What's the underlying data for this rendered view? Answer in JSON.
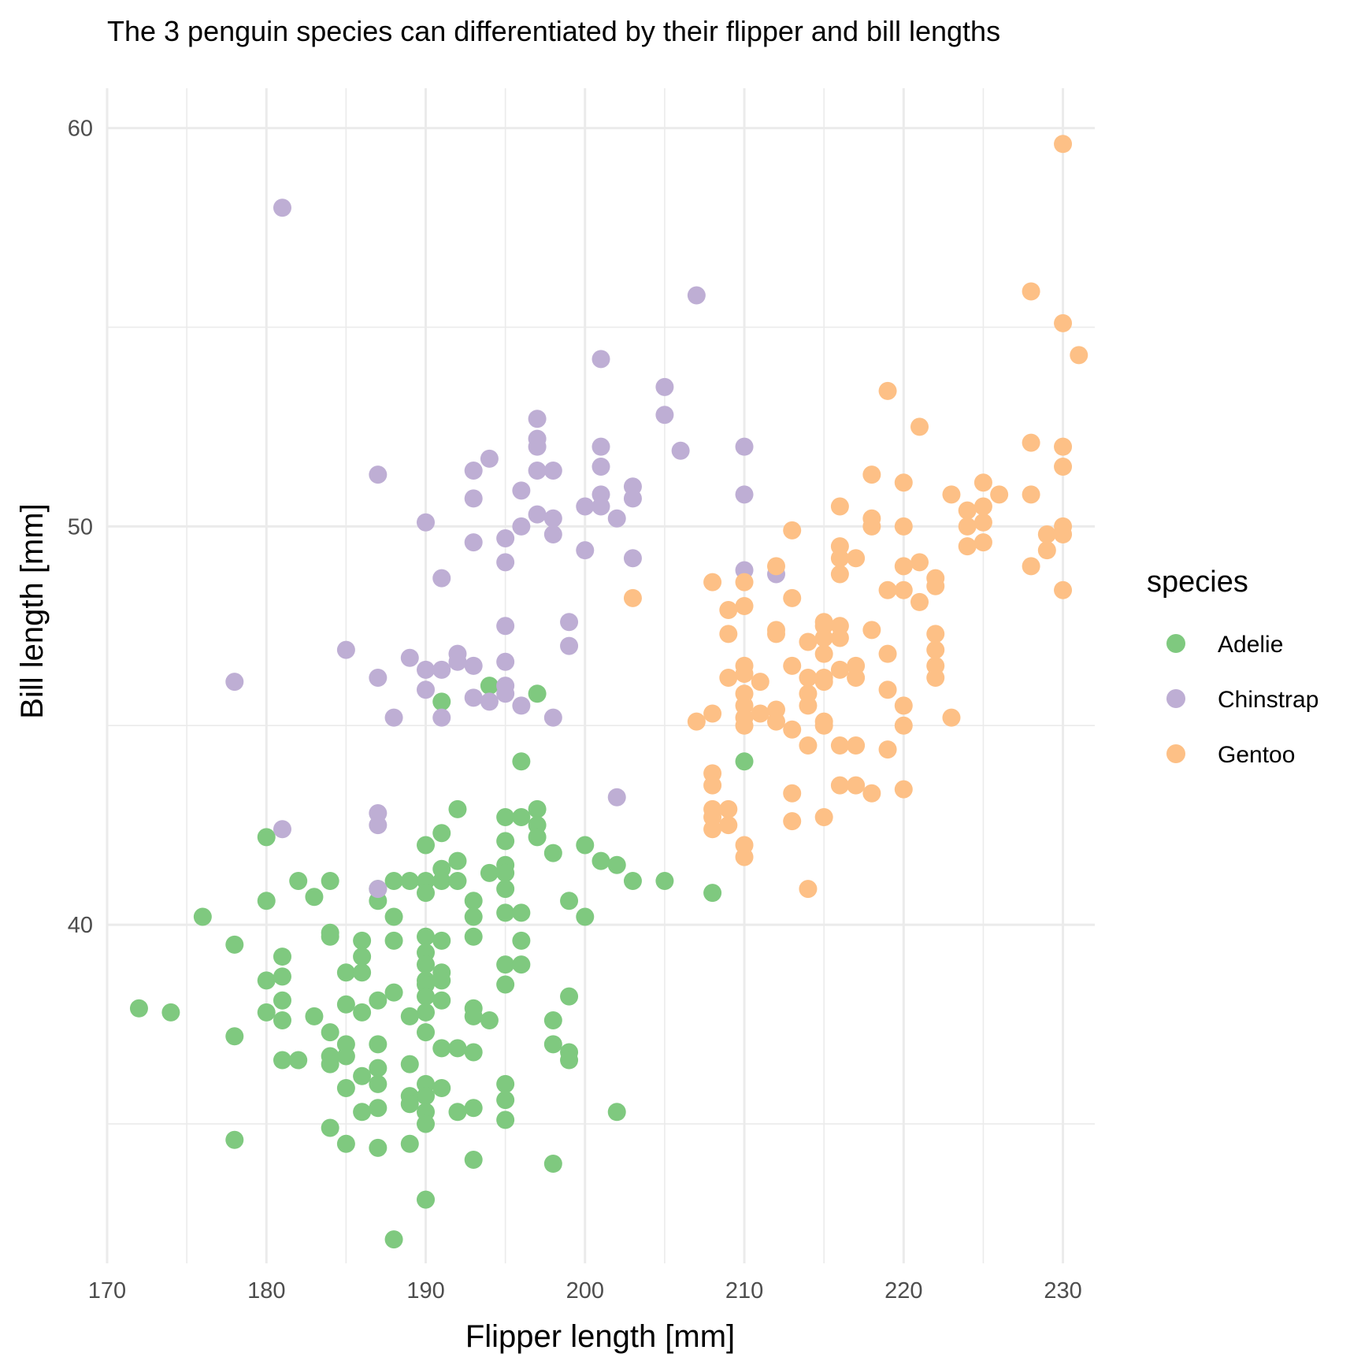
{
  "chart_data": {
    "type": "scatter",
    "title": "The 3 penguin species can differentiated by their flipper and bill lengths",
    "xlabel": "Flipper length [mm]",
    "ylabel": "Bill length [mm]",
    "xlim": [
      170,
      232
    ],
    "ylim": [
      31.5,
      61
    ],
    "x_ticks": [
      170,
      180,
      190,
      200,
      210,
      220,
      230
    ],
    "y_ticks": [
      40,
      50,
      60
    ],
    "grid": true,
    "legend": {
      "title": "species",
      "position": "right"
    },
    "series": [
      {
        "name": "Adelie",
        "color": "#7fc97f",
        "points": [
          [
            172,
            37.9
          ],
          [
            174,
            37.8
          ],
          [
            176,
            40.2
          ],
          [
            178,
            39.5
          ],
          [
            178,
            37.2
          ],
          [
            178,
            34.6
          ],
          [
            180,
            42.2
          ],
          [
            180,
            40.6
          ],
          [
            180,
            38.6
          ],
          [
            180,
            37.8
          ],
          [
            181,
            39.2
          ],
          [
            181,
            38.7
          ],
          [
            181,
            38.1
          ],
          [
            181,
            37.6
          ],
          [
            181,
            36.6
          ],
          [
            182,
            41.1
          ],
          [
            182,
            36.6
          ],
          [
            183,
            40.7
          ],
          [
            183,
            37.7
          ],
          [
            184,
            41.1
          ],
          [
            184,
            39.8
          ],
          [
            184,
            39.7
          ],
          [
            184,
            37.3
          ],
          [
            184,
            36.7
          ],
          [
            184,
            36.5
          ],
          [
            184,
            34.9
          ],
          [
            185,
            38.8
          ],
          [
            185,
            38.0
          ],
          [
            185,
            37.0
          ],
          [
            185,
            36.7
          ],
          [
            185,
            35.9
          ],
          [
            185,
            34.5
          ],
          [
            186,
            39.6
          ],
          [
            186,
            39.2
          ],
          [
            186,
            38.8
          ],
          [
            186,
            37.8
          ],
          [
            186,
            36.2
          ],
          [
            186,
            35.3
          ],
          [
            187,
            40.9
          ],
          [
            187,
            40.6
          ],
          [
            187,
            38.1
          ],
          [
            187,
            37.0
          ],
          [
            187,
            36.4
          ],
          [
            187,
            36.0
          ],
          [
            187,
            35.4
          ],
          [
            187,
            34.4
          ],
          [
            188,
            41.1
          ],
          [
            188,
            40.2
          ],
          [
            188,
            39.6
          ],
          [
            188,
            38.3
          ],
          [
            188,
            32.1
          ],
          [
            189,
            41.1
          ],
          [
            189,
            37.7
          ],
          [
            189,
            36.5
          ],
          [
            189,
            35.7
          ],
          [
            189,
            35.5
          ],
          [
            189,
            34.5
          ],
          [
            190,
            42.0
          ],
          [
            190,
            41.1
          ],
          [
            190,
            40.8
          ],
          [
            190,
            39.7
          ],
          [
            190,
            39.3
          ],
          [
            190,
            39.0
          ],
          [
            190,
            38.6
          ],
          [
            190,
            38.5
          ],
          [
            190,
            38.2
          ],
          [
            190,
            37.8
          ],
          [
            190,
            37.3
          ],
          [
            190,
            36.0
          ],
          [
            190,
            35.7
          ],
          [
            190,
            35.3
          ],
          [
            190,
            35.0
          ],
          [
            190,
            33.1
          ],
          [
            191,
            45.6
          ],
          [
            191,
            42.3
          ],
          [
            191,
            41.4
          ],
          [
            191,
            41.1
          ],
          [
            191,
            39.6
          ],
          [
            191,
            38.8
          ],
          [
            191,
            38.6
          ],
          [
            191,
            38.1
          ],
          [
            191,
            36.9
          ],
          [
            191,
            35.9
          ],
          [
            192,
            42.9
          ],
          [
            192,
            41.6
          ],
          [
            192,
            41.1
          ],
          [
            192,
            35.3
          ],
          [
            192,
            36.9
          ],
          [
            193,
            40.6
          ],
          [
            193,
            40.2
          ],
          [
            193,
            39.7
          ],
          [
            193,
            37.9
          ],
          [
            193,
            37.7
          ],
          [
            193,
            36.8
          ],
          [
            193,
            35.4
          ],
          [
            193,
            34.1
          ],
          [
            194,
            46.0
          ],
          [
            194,
            41.3
          ],
          [
            194,
            37.6
          ],
          [
            195,
            42.7
          ],
          [
            195,
            42.1
          ],
          [
            195,
            41.5
          ],
          [
            195,
            41.3
          ],
          [
            195,
            40.9
          ],
          [
            195,
            40.3
          ],
          [
            195,
            39.0
          ],
          [
            195,
            38.5
          ],
          [
            195,
            36.0
          ],
          [
            195,
            35.6
          ],
          [
            195,
            35.1
          ],
          [
            196,
            44.1
          ],
          [
            196,
            42.7
          ],
          [
            196,
            40.3
          ],
          [
            196,
            39.6
          ],
          [
            196,
            39.0
          ],
          [
            197,
            45.8
          ],
          [
            197,
            42.9
          ],
          [
            197,
            42.5
          ],
          [
            197,
            42.2
          ],
          [
            198,
            41.8
          ],
          [
            198,
            37.6
          ],
          [
            198,
            37.0
          ],
          [
            198,
            34.0
          ],
          [
            199,
            40.6
          ],
          [
            199,
            38.2
          ],
          [
            199,
            36.8
          ],
          [
            199,
            36.6
          ],
          [
            200,
            42.0
          ],
          [
            200,
            40.2
          ],
          [
            201,
            41.6
          ],
          [
            202,
            41.5
          ],
          [
            202,
            35.3
          ],
          [
            203,
            41.1
          ],
          [
            205,
            41.1
          ],
          [
            208,
            40.8
          ],
          [
            210,
            44.1
          ]
        ]
      },
      {
        "name": "Chinstrap",
        "color": "#beaed4",
        "points": [
          [
            178,
            46.1
          ],
          [
            181,
            58.0
          ],
          [
            181,
            42.4
          ],
          [
            185,
            46.9
          ],
          [
            187,
            51.3
          ],
          [
            187,
            46.2
          ],
          [
            187,
            42.8
          ],
          [
            187,
            42.5
          ],
          [
            187,
            40.9
          ],
          [
            188,
            45.2
          ],
          [
            189,
            46.7
          ],
          [
            190,
            50.1
          ],
          [
            190,
            46.4
          ],
          [
            190,
            45.9
          ],
          [
            191,
            48.7
          ],
          [
            191,
            46.4
          ],
          [
            191,
            45.2
          ],
          [
            192,
            46.8
          ],
          [
            192,
            46.6
          ],
          [
            193,
            51.4
          ],
          [
            193,
            50.7
          ],
          [
            193,
            49.6
          ],
          [
            193,
            46.5
          ],
          [
            193,
            45.7
          ],
          [
            194,
            51.7
          ],
          [
            194,
            45.6
          ],
          [
            195,
            49.7
          ],
          [
            195,
            49.1
          ],
          [
            195,
            47.5
          ],
          [
            195,
            46.6
          ],
          [
            195,
            46.0
          ],
          [
            195,
            45.8
          ],
          [
            196,
            50.9
          ],
          [
            196,
            50.0
          ],
          [
            196,
            45.5
          ],
          [
            197,
            52.7
          ],
          [
            197,
            52.2
          ],
          [
            197,
            52.0
          ],
          [
            197,
            51.4
          ],
          [
            197,
            50.3
          ],
          [
            198,
            51.4
          ],
          [
            198,
            50.2
          ],
          [
            198,
            49.8
          ],
          [
            198,
            45.2
          ],
          [
            199,
            47.6
          ],
          [
            199,
            47.0
          ],
          [
            200,
            50.5
          ],
          [
            200,
            49.4
          ],
          [
            201,
            54.2
          ],
          [
            201,
            52.0
          ],
          [
            201,
            51.5
          ],
          [
            201,
            50.8
          ],
          [
            201,
            50.5
          ],
          [
            202,
            50.2
          ],
          [
            202,
            43.2
          ],
          [
            203,
            51.0
          ],
          [
            203,
            50.7
          ],
          [
            203,
            49.2
          ],
          [
            205,
            53.5
          ],
          [
            205,
            52.8
          ],
          [
            206,
            51.9
          ],
          [
            207,
            55.8
          ],
          [
            210,
            52.0
          ],
          [
            210,
            50.8
          ],
          [
            210,
            48.9
          ],
          [
            212,
            48.8
          ]
        ]
      },
      {
        "name": "Gentoo",
        "color": "#fdc086",
        "points": [
          [
            203,
            48.2
          ],
          [
            207,
            45.1
          ],
          [
            208,
            48.6
          ],
          [
            208,
            45.3
          ],
          [
            208,
            43.8
          ],
          [
            208,
            43.5
          ],
          [
            208,
            42.9
          ],
          [
            208,
            42.7
          ],
          [
            208,
            42.4
          ],
          [
            209,
            47.9
          ],
          [
            209,
            47.3
          ],
          [
            209,
            46.2
          ],
          [
            209,
            42.9
          ],
          [
            209,
            42.5
          ],
          [
            210,
            48.6
          ],
          [
            210,
            48.0
          ],
          [
            210,
            46.5
          ],
          [
            210,
            46.3
          ],
          [
            210,
            45.8
          ],
          [
            210,
            45.5
          ],
          [
            210,
            45.2
          ],
          [
            210,
            45.0
          ],
          [
            210,
            41.7
          ],
          [
            210,
            42.0
          ],
          [
            211,
            46.1
          ],
          [
            211,
            45.3
          ],
          [
            212,
            49.0
          ],
          [
            212,
            47.4
          ],
          [
            212,
            47.3
          ],
          [
            212,
            45.4
          ],
          [
            212,
            45.1
          ],
          [
            213,
            49.9
          ],
          [
            213,
            48.2
          ],
          [
            213,
            46.5
          ],
          [
            213,
            44.9
          ],
          [
            213,
            43.3
          ],
          [
            213,
            42.6
          ],
          [
            214,
            47.1
          ],
          [
            214,
            46.2
          ],
          [
            214,
            45.8
          ],
          [
            214,
            45.5
          ],
          [
            214,
            44.5
          ],
          [
            214,
            40.9
          ],
          [
            215,
            47.5
          ],
          [
            215,
            47.2
          ],
          [
            215,
            46.8
          ],
          [
            215,
            46.2
          ],
          [
            215,
            46.1
          ],
          [
            215,
            45.1
          ],
          [
            215,
            45.0
          ],
          [
            215,
            42.7
          ],
          [
            215,
            47.6
          ],
          [
            216,
            50.5
          ],
          [
            216,
            49.5
          ],
          [
            216,
            49.2
          ],
          [
            216,
            48.8
          ],
          [
            216,
            47.5
          ],
          [
            216,
            47.2
          ],
          [
            216,
            46.4
          ],
          [
            216,
            44.5
          ],
          [
            216,
            43.5
          ],
          [
            217,
            49.2
          ],
          [
            217,
            46.5
          ],
          [
            217,
            46.2
          ],
          [
            217,
            44.5
          ],
          [
            217,
            43.5
          ],
          [
            218,
            51.3
          ],
          [
            218,
            50.2
          ],
          [
            218,
            50.0
          ],
          [
            218,
            47.4
          ],
          [
            218,
            43.3
          ],
          [
            219,
            53.4
          ],
          [
            219,
            48.4
          ],
          [
            219,
            46.8
          ],
          [
            219,
            45.9
          ],
          [
            219,
            44.4
          ],
          [
            220,
            51.1
          ],
          [
            220,
            50.0
          ],
          [
            220,
            49.0
          ],
          [
            220,
            48.4
          ],
          [
            220,
            45.5
          ],
          [
            220,
            45.0
          ],
          [
            220,
            43.4
          ],
          [
            221,
            52.5
          ],
          [
            221,
            49.1
          ],
          [
            221,
            48.1
          ],
          [
            222,
            48.7
          ],
          [
            222,
            48.5
          ],
          [
            222,
            47.3
          ],
          [
            222,
            46.9
          ],
          [
            222,
            46.5
          ],
          [
            222,
            46.2
          ],
          [
            223,
            50.8
          ],
          [
            223,
            45.2
          ],
          [
            224,
            50.4
          ],
          [
            224,
            50.0
          ],
          [
            224,
            49.5
          ],
          [
            225,
            51.1
          ],
          [
            225,
            50.5
          ],
          [
            225,
            50.1
          ],
          [
            225,
            49.6
          ],
          [
            226,
            50.8
          ],
          [
            228,
            55.9
          ],
          [
            228,
            52.1
          ],
          [
            228,
            50.8
          ],
          [
            228,
            49.0
          ],
          [
            229,
            49.8
          ],
          [
            229,
            49.4
          ],
          [
            230,
            59.6
          ],
          [
            230,
            55.1
          ],
          [
            230,
            52.0
          ],
          [
            230,
            51.5
          ],
          [
            230,
            50.0
          ],
          [
            230,
            49.8
          ],
          [
            230,
            48.4
          ],
          [
            231,
            54.3
          ]
        ]
      }
    ]
  }
}
